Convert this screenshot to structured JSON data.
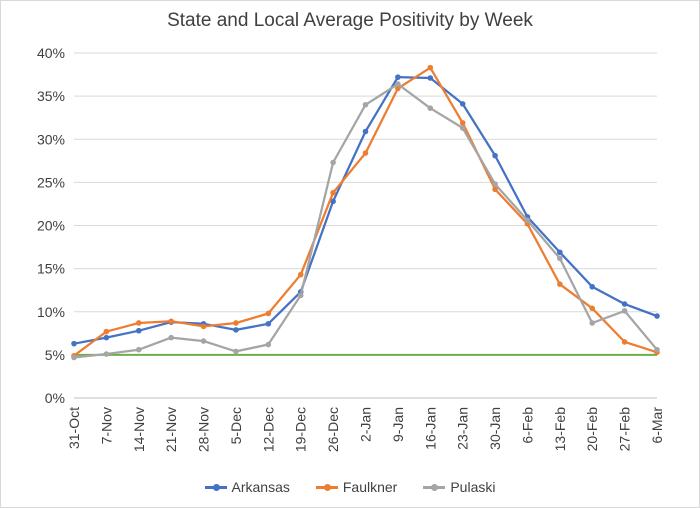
{
  "chart_data": {
    "type": "line",
    "title": "State and Local Average Positivity by Week",
    "xlabel": "",
    "ylabel": "",
    "categories": [
      "31-Oct",
      "7-Nov",
      "14-Nov",
      "21-Nov",
      "28-Nov",
      "5-Dec",
      "12-Dec",
      "19-Dec",
      "26-Dec",
      "2-Jan",
      "9-Jan",
      "16-Jan",
      "23-Jan",
      "30-Jan",
      "6-Feb",
      "13-Feb",
      "20-Feb",
      "27-Feb",
      "6-Mar"
    ],
    "yticks": [
      "0%",
      "5%",
      "10%",
      "15%",
      "20%",
      "25%",
      "30%",
      "35%",
      "40%"
    ],
    "ylim": [
      0,
      40
    ],
    "grid": true,
    "legend_position": "bottom",
    "series": [
      {
        "name": "Arkansas",
        "color": "#4472c4",
        "values": [
          6.3,
          7.0,
          7.8,
          8.8,
          8.6,
          7.9,
          8.6,
          12.3,
          22.8,
          30.9,
          37.2,
          37.1,
          34.1,
          28.1,
          21.0,
          16.9,
          12.9,
          10.9,
          9.5
        ]
      },
      {
        "name": "Faulkner",
        "color": "#ed7d31",
        "values": [
          4.9,
          7.7,
          8.7,
          8.9,
          8.3,
          8.7,
          9.8,
          14.3,
          23.8,
          28.4,
          35.9,
          38.3,
          31.9,
          24.2,
          20.2,
          13.2,
          10.4,
          6.5,
          5.3
        ]
      },
      {
        "name": "Pulaski",
        "color": "#a5a5a5",
        "values": [
          4.7,
          5.1,
          5.6,
          7.0,
          6.6,
          5.4,
          6.2,
          11.9,
          27.3,
          34.0,
          36.4,
          33.6,
          31.3,
          24.8,
          20.6,
          16.2,
          8.7,
          10.1,
          5.6
        ]
      }
    ],
    "reference_line": {
      "value": 5,
      "color": "#70ad47"
    }
  }
}
